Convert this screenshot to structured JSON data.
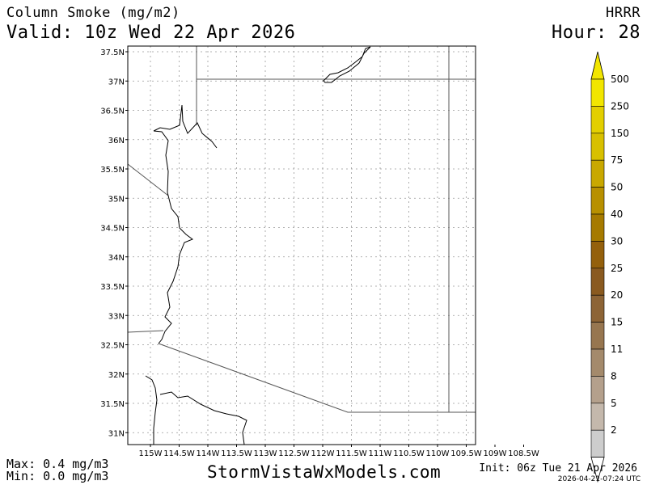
{
  "header": {
    "title": "Column Smoke (mg/m2)",
    "valid": "Valid: 10z Wed 22 Apr 2026",
    "model": "HRRR",
    "hour": "Hour: 28"
  },
  "footer": {
    "max": "Max: 0.4 mg/m3",
    "min": "Min: 0.0 mg/m3",
    "site": "StormVistaWxModels.com",
    "init": "Init: 06z Tue 21 Apr 2026",
    "stamp": "2026-04-21-07:24 UTC"
  },
  "map": {
    "lat_labels": [
      "37.5N",
      "37N",
      "36.5N",
      "36N",
      "35.5N",
      "35N",
      "34.5N",
      "34N",
      "33.5N",
      "33N",
      "32.5N",
      "32N",
      "31.5N",
      "31N"
    ],
    "lon_labels": [
      "115W",
      "114.5W",
      "114W",
      "113.5W",
      "113W",
      "112.5W",
      "112W",
      "111.5W",
      "111W",
      "110.5W",
      "110W",
      "109.5W",
      "109W",
      "108.5W"
    ],
    "grid_color": "#999999",
    "border_color": "#555555"
  },
  "colorbar": {
    "levels": [
      "500",
      "250",
      "150",
      "75",
      "50",
      "40",
      "30",
      "25",
      "20",
      "15",
      "11",
      "8",
      "5",
      "2"
    ],
    "colors": [
      "#f2e600",
      "#e3cf00",
      "#d8c000",
      "#c9a800",
      "#b89000",
      "#a67a00",
      "#94600c",
      "#8a5a20",
      "#8d6436",
      "#977650",
      "#a48a6c",
      "#b4a08c",
      "#c4b8ac",
      "#cdcdcd"
    ]
  }
}
